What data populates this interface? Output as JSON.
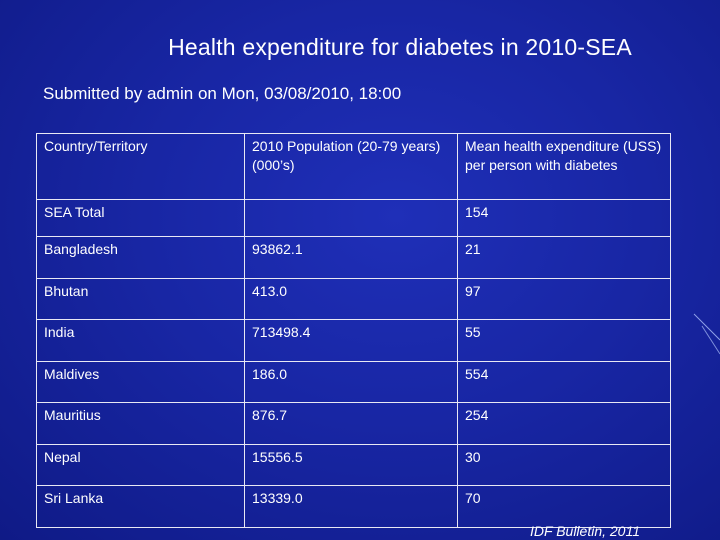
{
  "slide": {
    "title": "Health expenditure for diabetes in 2010-SEA",
    "subtitle": "Submitted by admin on Mon, 03/08/2010, 18:00",
    "source": "IDF Bulletin, 2011"
  },
  "table": {
    "headers": [
      "Country/Territory",
      "2010 Population (20-79 years)(000’s)",
      "Mean health expenditure (USS) per person with diabetes"
    ],
    "rows": [
      [
        "SEA Total",
        "",
        "154"
      ],
      [
        "Bangladesh",
        "93862.1",
        "21"
      ],
      [
        "Bhutan",
        "413.0",
        "97"
      ],
      [
        "India",
        "713498.4",
        "55"
      ],
      [
        "Maldives",
        "186.0",
        "554"
      ],
      [
        "Mauritius",
        "876.7",
        "254"
      ],
      [
        "Nepal",
        "15556.5",
        "30"
      ],
      [
        "Sri Lanka",
        "13339.0",
        "70"
      ]
    ]
  },
  "colors": {
    "background": "#1826a4",
    "text": "#ffffff",
    "grid": "#e8e8f4"
  }
}
